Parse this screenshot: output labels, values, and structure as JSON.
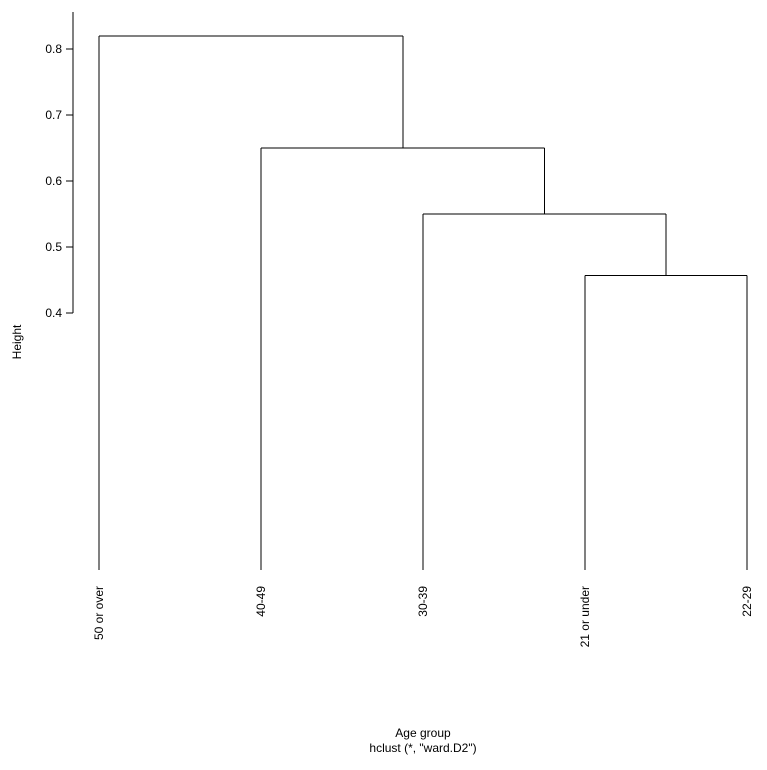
{
  "chart_data": {
    "type": "dendrogram",
    "title": "",
    "xlabel": "Age group",
    "subtitle": "hclust (*, \"ward.D2\")",
    "ylabel": "Height",
    "yticks": [
      0.4,
      0.5,
      0.6,
      0.7,
      0.8
    ],
    "ytick_labels": [
      "0.4",
      "0.5",
      "0.6",
      "0.7",
      "0.8"
    ],
    "leaves": [
      "50 or over",
      "40-49",
      "30-39",
      "21 or under",
      "22-29"
    ],
    "merges": [
      {
        "left": "21 or under",
        "right": "22-29",
        "height": 0.457
      },
      {
        "left": "30-39",
        "right": "merge-1",
        "height": 0.55
      },
      {
        "left": "40-49",
        "right": "merge-2",
        "height": 0.65
      },
      {
        "left": "50 or over",
        "right": "merge-3",
        "height": 0.82
      }
    ],
    "line_color": "#000000"
  }
}
